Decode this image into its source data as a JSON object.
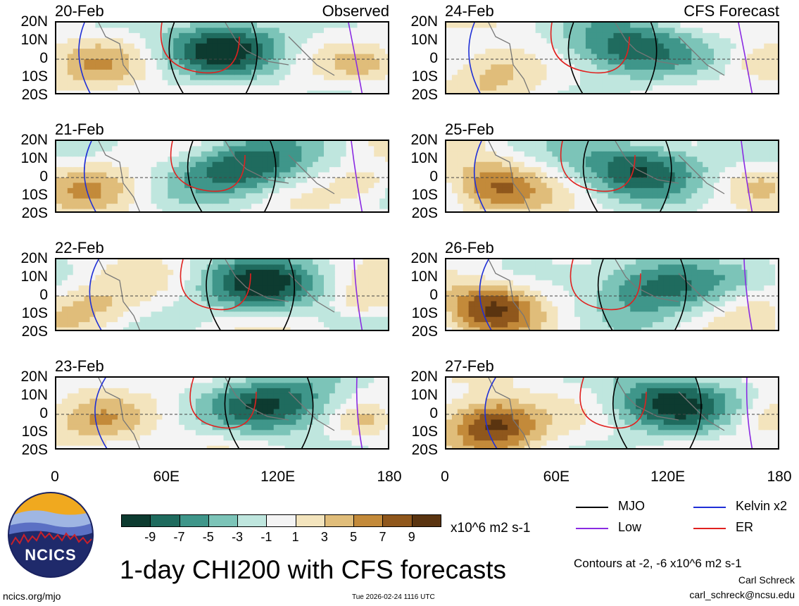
{
  "chart_data": {
    "type": "heatmap",
    "title": "1-day CHI200 with CFS forecasts",
    "variable": "CHI200 anomaly",
    "units": "x10^6 m2 s-1",
    "contour_note": "Contours at -2, -6 x10^6 m2 s-1",
    "x_axis": {
      "ticks": [
        "0",
        "60E",
        "120E",
        "180"
      ],
      "range": [
        0,
        180
      ]
    },
    "y_axis": {
      "ticks": [
        "20N",
        "10N",
        "0",
        "10S",
        "20S"
      ],
      "range": [
        -20,
        20
      ]
    },
    "colorbar": {
      "levels": [
        "-9",
        "-7",
        "-5",
        "-3",
        "-1",
        "1",
        "3",
        "5",
        "7",
        "9"
      ],
      "colors": [
        "#0d3b30",
        "#1f6b5e",
        "#3f968a",
        "#7cc4b8",
        "#bfe6de",
        "#f4f4f4",
        "#f3e4bd",
        "#e0bd7a",
        "#c38a3a",
        "#8f571c",
        "#5a3410"
      ]
    },
    "panels": [
      {
        "date": "20-Feb",
        "tag": "Observed",
        "column": "left"
      },
      {
        "date": "21-Feb",
        "tag": "",
        "column": "left"
      },
      {
        "date": "22-Feb",
        "tag": "",
        "column": "left"
      },
      {
        "date": "23-Feb",
        "tag": "",
        "column": "left"
      },
      {
        "date": "24-Feb",
        "tag": "CFS Forecast",
        "column": "right"
      },
      {
        "date": "25-Feb",
        "tag": "",
        "column": "right"
      },
      {
        "date": "26-Feb",
        "tag": "",
        "column": "right"
      },
      {
        "date": "27-Feb",
        "tag": "",
        "column": "right"
      }
    ],
    "legend": [
      {
        "label": "MJO",
        "color": "#000000"
      },
      {
        "label": "Kelvin x2",
        "color": "#1f2fd6"
      },
      {
        "label": "Low",
        "color": "#8a2be2"
      },
      {
        "label": "ER",
        "color": "#e0211f"
      }
    ]
  },
  "footer": {
    "logo_text": "NCICS",
    "site": "ncics.org/mjo",
    "timestamp": "Tue 2026-02-24 1116 UTC",
    "author": "Carl Schreck",
    "email": "carl_schreck@ncsu.edu"
  }
}
